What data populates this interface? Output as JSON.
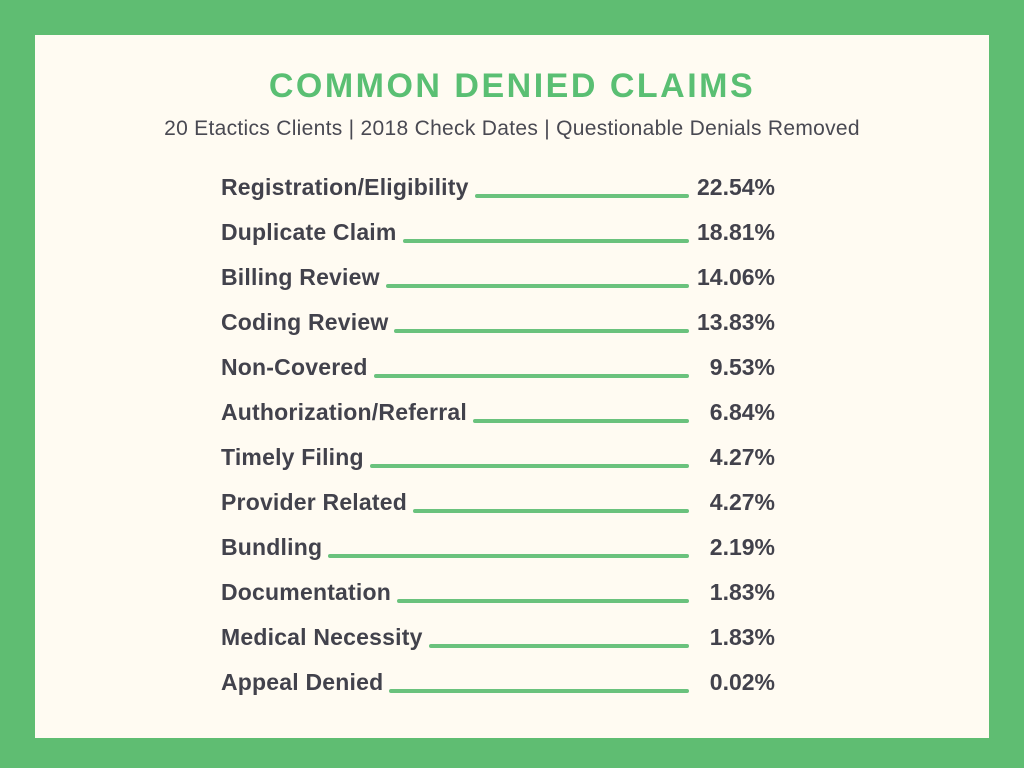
{
  "page": {
    "background_color": "#5fbd72",
    "card_color": "#fffbf2",
    "accent_green": "#5abf73",
    "leader_line_color": "#6ac27d",
    "text_color": "#42424c"
  },
  "header": {
    "title": "COMMON DENIED CLAIMS",
    "subtitle": "20 Etactics Clients | 2018 Check Dates | Questionable Denials Removed"
  },
  "chart_data": {
    "type": "bar",
    "variant": "leader-line-list",
    "title": "COMMON DENIED CLAIMS",
    "subtitle": "20 Etactics Clients | 2018 Check Dates | Questionable Denials Removed",
    "categories": [
      "Registration/Eligibility",
      "Duplicate Claim",
      "Billing Review",
      "Coding Review",
      "Non-Covered",
      "Authorization/Referral",
      "Timely Filing",
      "Provider Related",
      "Bundling",
      "Documentation",
      "Medical Necessity",
      "Appeal Denied"
    ],
    "values": [
      22.54,
      18.81,
      14.06,
      13.83,
      9.53,
      6.84,
      4.27,
      4.27,
      2.19,
      1.83,
      1.83,
      0.02
    ],
    "display_values": [
      "22.54%",
      "18.81%",
      "14.06%",
      "13.83%",
      "9.53%",
      "6.84%",
      "4.27%",
      "4.27%",
      "2.19%",
      "1.83%",
      "1.83%",
      "0.02%"
    ],
    "value_suffix": "%",
    "legend": "none",
    "grid": false,
    "value_alignment": "right"
  }
}
